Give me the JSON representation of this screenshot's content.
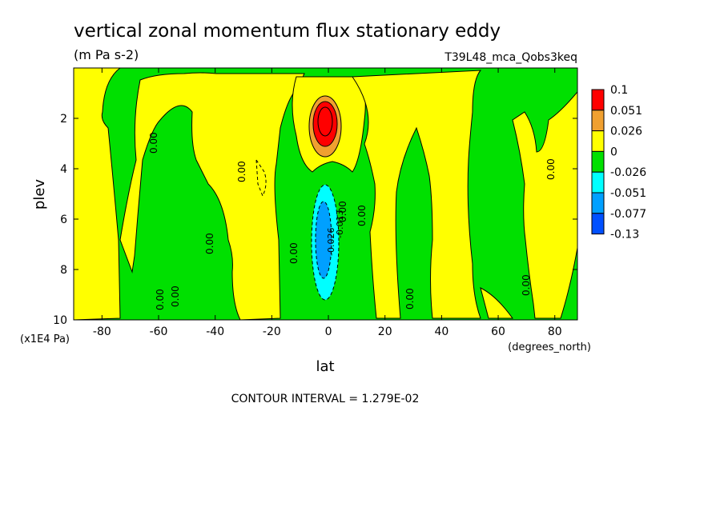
{
  "chart_data": {
    "type": "heatmap",
    "title": "vertical zonal momentum flux stationary eddy",
    "units_label": "(m Pa s-2)",
    "dataset_label": "T39L48_mca_Qobs3keq",
    "xlabel": "lat",
    "x_units": "(degrees_north)",
    "ylabel": "plev",
    "y_units": "(x1E4 Pa)",
    "xlim": [
      -90,
      88
    ],
    "ylim": [
      10,
      0
    ],
    "x_ticks": [
      "-80",
      "-60",
      "-40",
      "-20",
      "0",
      "20",
      "40",
      "60",
      "80"
    ],
    "x_tick_values": [
      -80,
      -60,
      -40,
      -20,
      0,
      20,
      40,
      60,
      80
    ],
    "y_ticks": [
      "2",
      "4",
      "6",
      "8",
      "10"
    ],
    "y_tick_values": [
      2,
      4,
      6,
      8,
      10
    ],
    "legend": {
      "placement": "right",
      "levels": [
        "0.1",
        "0.051",
        "0.026",
        "0",
        "-0.026",
        "-0.051",
        "-0.077",
        "-0.13"
      ],
      "colors": [
        "#ff0000",
        "#f0a030",
        "#ffff00",
        "#00e000",
        "#00ffff",
        "#00a0ff",
        "#0050ff"
      ]
    },
    "contour_labels": [
      "0.00",
      "-0.026",
      "-0.013"
    ],
    "footer": "CONTOUR INTERVAL = 1.279E-02",
    "colors": {
      "positive_weak": "#ffff00",
      "positive_mid": "#f0a030",
      "positive_strong": "#ff0000",
      "negative_weak": "#00e000",
      "negative_mid": "#00ffff",
      "negative_strong": "#00a0ff"
    }
  }
}
